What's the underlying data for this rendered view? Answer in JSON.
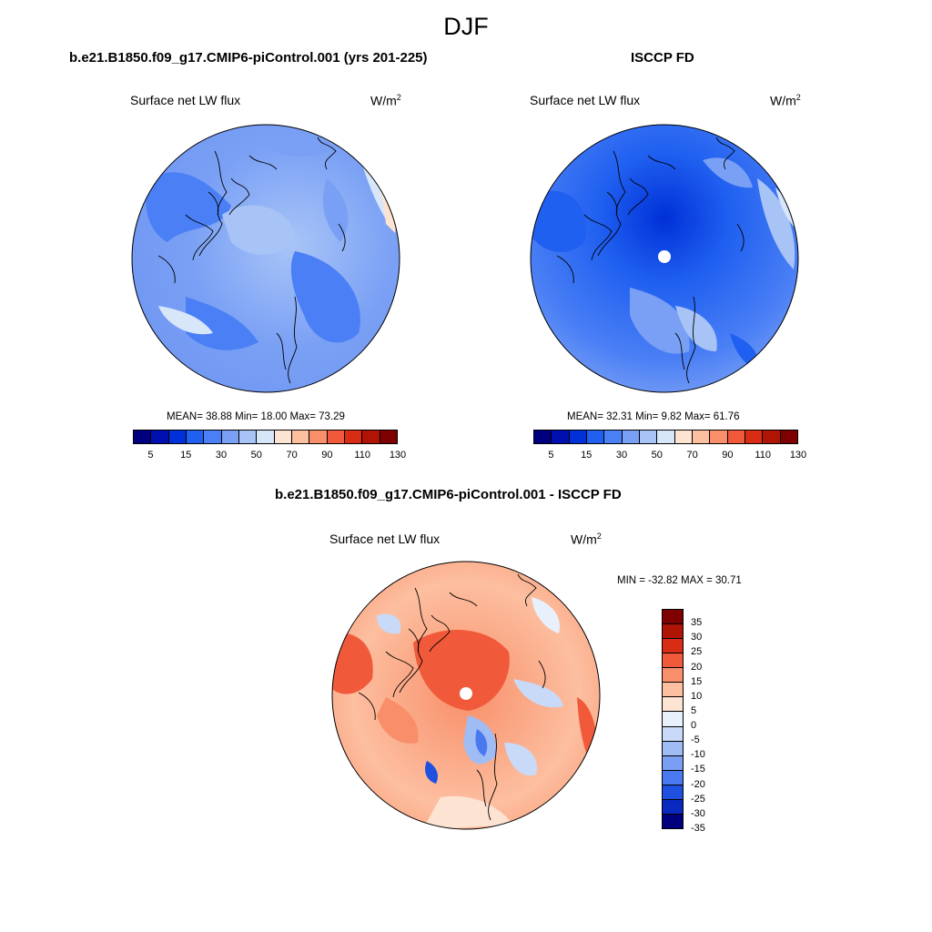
{
  "season": "DJF",
  "panels": [
    {
      "case": "b.e21.B1850.f09_g17.CMIP6-piControl.001 (yrs 201-225)",
      "variable": "Surface net LW flux",
      "units": "W/m",
      "units_sup": "2",
      "stats": "MEAN=  38.88  Min=  18.00  Max=  73.29"
    },
    {
      "case": "ISCCP FD",
      "variable": "Surface net LW flux",
      "units": "W/m",
      "units_sup": "2",
      "stats": "MEAN=  32.31  Min=   9.82  Max=  61.76"
    },
    {
      "case": "b.e21.B1850.f09_g17.CMIP6-piControl.001 - ISCCP FD",
      "variable": "Surface net LW flux",
      "units": "W/m",
      "units_sup": "2",
      "stats": "MIN = -32.82 MAX =  30.71"
    }
  ],
  "colorbar_main": {
    "colors": [
      "#00007f",
      "#0010b0",
      "#0030d8",
      "#2060f0",
      "#4a7ff5",
      "#7aa0f5",
      "#a8c4f7",
      "#d8e6fa",
      "#fde3d2",
      "#fcbfa0",
      "#f98f6a",
      "#f05a3a",
      "#d82c15",
      "#b01405",
      "#7f0000"
    ],
    "labels": [
      "5",
      "15",
      "30",
      "50",
      "70",
      "90",
      "110",
      "130"
    ]
  },
  "colorbar_diff": {
    "colors": [
      "#7f0000",
      "#b01405",
      "#d82c15",
      "#f05a3a",
      "#f98f6a",
      "#fcbfa0",
      "#fde3d2",
      "#e8f0fb",
      "#c8daf8",
      "#a0bcf5",
      "#7a9ef2",
      "#4a78ee",
      "#2050e0",
      "#0828c0",
      "#00007f"
    ],
    "labels": [
      "35",
      "30",
      "25",
      "20",
      "15",
      "10",
      "5",
      "0",
      "-5",
      "-10",
      "-15",
      "-20",
      "-25",
      "-30",
      "-35"
    ]
  }
}
